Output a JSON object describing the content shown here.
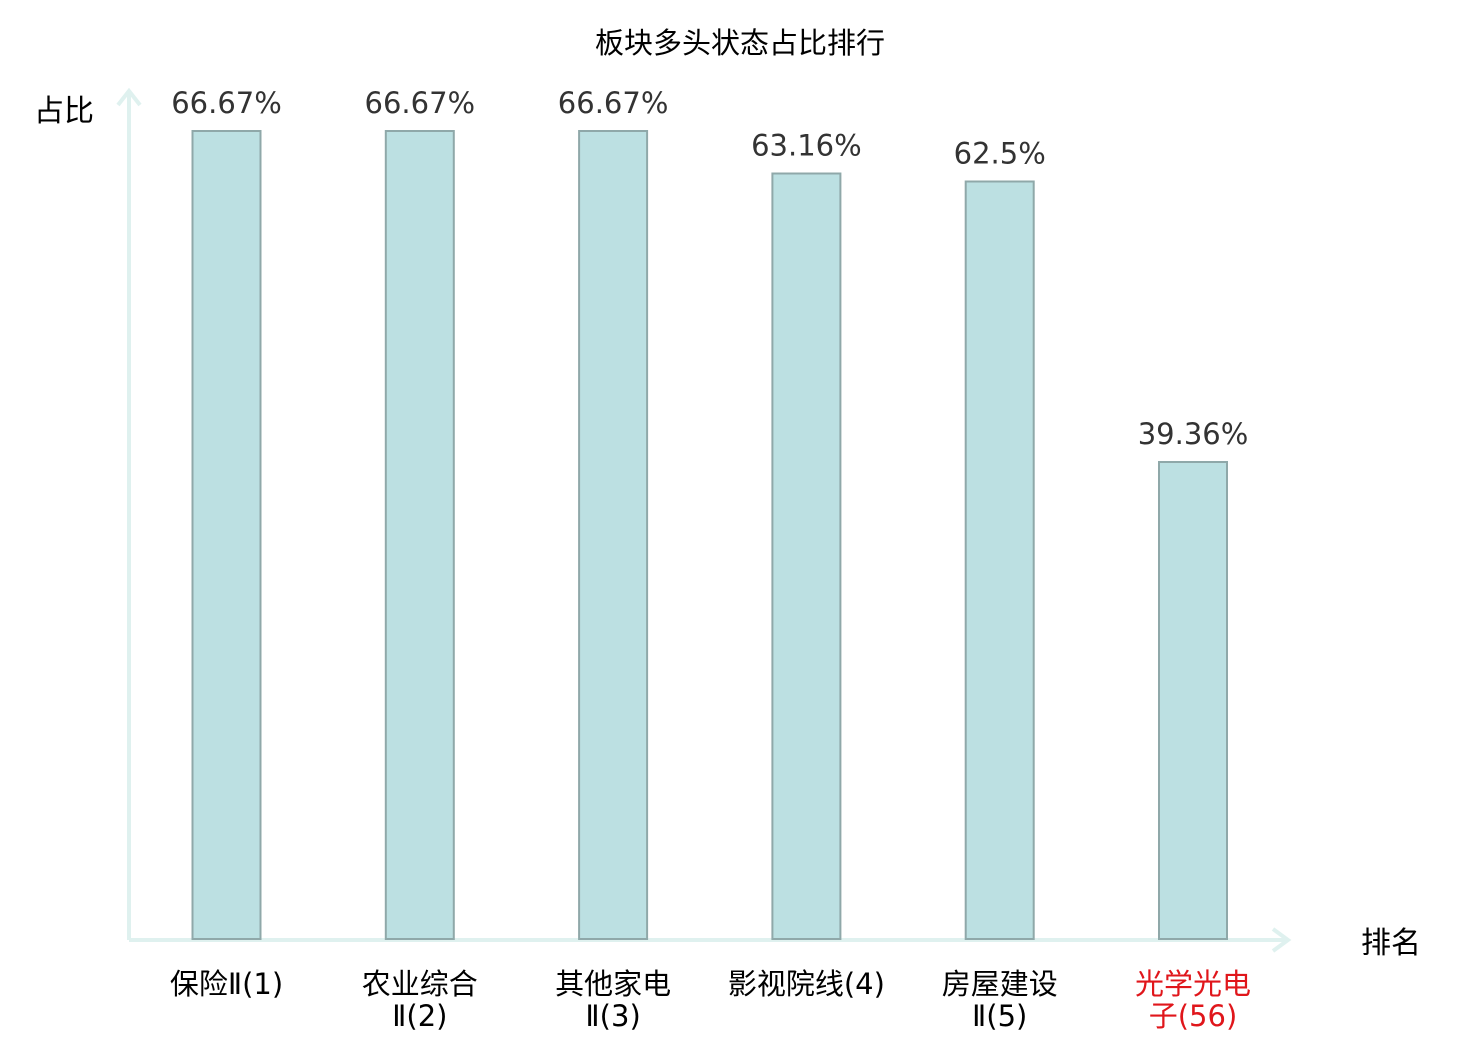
{
  "chart_data": {
    "type": "bar",
    "title": "板块多头状态占比排行",
    "ylabel": "占比",
    "xlabel": "排名",
    "categories": [
      {
        "name": "保险Ⅱ",
        "rank": "(1)",
        "highlight": false
      },
      {
        "name": "农业综合Ⅱ",
        "rank": "(2)",
        "highlight": false
      },
      {
        "name": "其他家电Ⅱ",
        "rank": "(3)",
        "highlight": false
      },
      {
        "name": "影视院线",
        "rank": "(4)",
        "highlight": false
      },
      {
        "name": "房屋建设Ⅱ",
        "rank": "(5)",
        "highlight": false
      },
      {
        "name": "光学光电子",
        "rank": "(56)",
        "highlight": true
      }
    ],
    "values": [
      66.67,
      66.67,
      66.67,
      63.16,
      62.5,
      39.36
    ],
    "value_labels": [
      "66.67%",
      "66.67%",
      "66.67%",
      "63.16%",
      "62.5%",
      "39.36%"
    ],
    "ylim": [
      0,
      70
    ],
    "grid": false,
    "legend": false
  },
  "colors": {
    "bar_fill": "#bce0e2",
    "bar_stroke": "#8fa8a9",
    "axis": "#dff1ef",
    "label_text": "#000000",
    "value_text": "#333333",
    "highlight_text": "#e0161b",
    "rank_text": "#555555"
  }
}
